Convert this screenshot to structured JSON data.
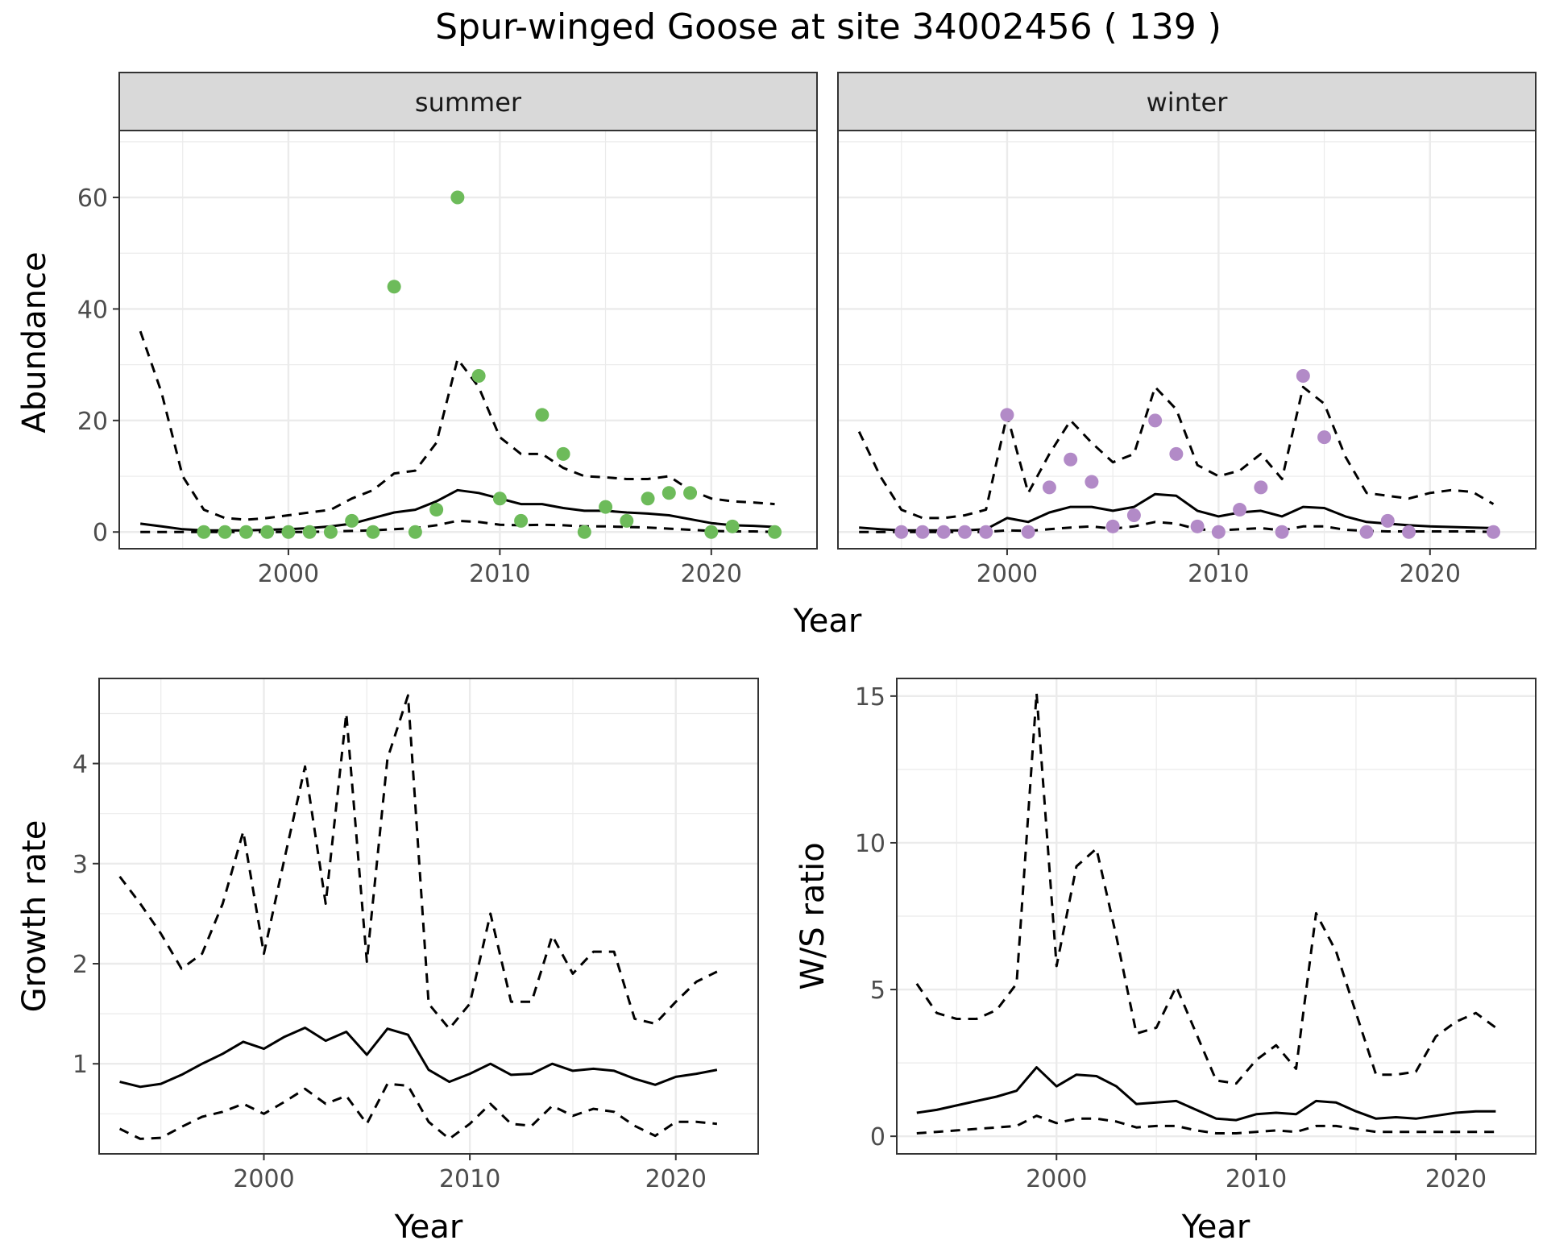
{
  "title": "Spur-winged Goose at site 34002456 ( 139 )",
  "colors": {
    "summer_points": "#6dbb5a",
    "winter_points": "#b28ac7",
    "strip_fill": "#d9d9d9",
    "grid_major": "#ebebeb",
    "line": "#000000"
  },
  "chart_data": [
    {
      "type": "scatter",
      "facet": "summer",
      "strip_label": "summer",
      "xlabel": "Year",
      "ylabel": "Abundance",
      "xlim": [
        1992,
        2025
      ],
      "ylim": [
        -3,
        72
      ],
      "xticks": [
        2000,
        2010,
        2020
      ],
      "yticks": [
        0,
        20,
        40,
        60
      ],
      "points": {
        "x": [
          1996,
          1997,
          1998,
          1999,
          2000,
          2001,
          2002,
          2003,
          2004,
          2005,
          2006,
          2007,
          2008,
          2009,
          2010,
          2011,
          2012,
          2013,
          2014,
          2015,
          2016,
          2017,
          2018,
          2019,
          2020,
          2021,
          2023
        ],
        "y": [
          0,
          0,
          0,
          0,
          0,
          0,
          0,
          2,
          0,
          44,
          0,
          4,
          60,
          28,
          6,
          2,
          21,
          14,
          0,
          4.5,
          2,
          6,
          7,
          7,
          0,
          1,
          0
        ]
      },
      "lines": [
        {
          "style": "solid",
          "x": [
            1993,
            1994,
            1995,
            1996,
            1997,
            1998,
            1999,
            2000,
            2001,
            2002,
            2003,
            2004,
            2005,
            2006,
            2007,
            2008,
            2009,
            2010,
            2011,
            2012,
            2013,
            2014,
            2015,
            2016,
            2017,
            2018,
            2019,
            2020,
            2021,
            2022,
            2023
          ],
          "y": [
            1.5,
            1,
            0.5,
            0.3,
            0.3,
            0.3,
            0.4,
            0.5,
            0.7,
            1,
            1.5,
            2.5,
            3.5,
            4,
            5.5,
            7.5,
            7,
            6,
            5,
            5,
            4.3,
            3.8,
            3.8,
            3.5,
            3.3,
            3,
            2.3,
            1.6,
            1.2,
            1.1,
            0.9
          ]
        },
        {
          "style": "dashed",
          "x": [
            1993,
            1994,
            1995,
            1996,
            1997,
            1998,
            1999,
            2000,
            2001,
            2002,
            2003,
            2004,
            2005,
            2006,
            2007,
            2008,
            2009,
            2010,
            2011,
            2012,
            2013,
            2014,
            2015,
            2016,
            2017,
            2018,
            2019,
            2020,
            2021,
            2022,
            2023
          ],
          "y": [
            36,
            25,
            10,
            4,
            2.5,
            2.2,
            2.5,
            3,
            3.5,
            4,
            6,
            7.5,
            10.5,
            11,
            16,
            31,
            26,
            17,
            14,
            14,
            11.5,
            10,
            9.8,
            9.5,
            9.5,
            10,
            7.5,
            6,
            5.5,
            5.3,
            5
          ]
        },
        {
          "style": "dashed",
          "x": [
            1993,
            1994,
            1995,
            1996,
            1997,
            1998,
            1999,
            2000,
            2001,
            2002,
            2003,
            2004,
            2005,
            2006,
            2007,
            2008,
            2009,
            2010,
            2011,
            2012,
            2013,
            2014,
            2015,
            2016,
            2017,
            2018,
            2019,
            2020,
            2021,
            2022,
            2023
          ],
          "y": [
            0,
            0,
            0,
            0,
            0,
            0,
            0,
            0,
            0,
            0.1,
            0.2,
            0.3,
            0.5,
            0.7,
            1.2,
            2,
            1.8,
            1.3,
            1.2,
            1.3,
            1.2,
            1,
            1,
            0.9,
            0.8,
            0.6,
            0.4,
            0.2,
            0.1,
            0.1,
            0
          ]
        }
      ]
    },
    {
      "type": "scatter",
      "facet": "winter",
      "strip_label": "winter",
      "xlabel": "Year",
      "ylabel": "",
      "xlim": [
        1992,
        2025
      ],
      "ylim": [
        -3,
        72
      ],
      "xticks": [
        2000,
        2010,
        2020
      ],
      "yticks": [
        0,
        20,
        40,
        60
      ],
      "points": {
        "x": [
          1995,
          1996,
          1997,
          1998,
          1999,
          2000,
          2001,
          2002,
          2003,
          2004,
          2005,
          2006,
          2007,
          2008,
          2009,
          2010,
          2011,
          2012,
          2013,
          2014,
          2015,
          2017,
          2018,
          2019,
          2023
        ],
        "y": [
          0,
          0,
          0,
          0,
          0,
          21,
          0,
          8,
          13,
          9,
          1,
          3,
          20,
          14,
          1,
          0,
          4,
          8,
          0,
          28,
          17,
          0,
          2,
          0,
          0
        ]
      },
      "lines": [
        {
          "style": "solid",
          "x": [
            1993,
            1994,
            1995,
            1996,
            1997,
            1998,
            1999,
            2000,
            2001,
            2002,
            2003,
            2004,
            2005,
            2006,
            2007,
            2008,
            2009,
            2010,
            2011,
            2012,
            2013,
            2014,
            2015,
            2016,
            2017,
            2018,
            2019,
            2020,
            2021,
            2022,
            2023
          ],
          "y": [
            0.8,
            0.5,
            0.3,
            0.3,
            0.3,
            0.3,
            0.5,
            2.5,
            1.8,
            3.5,
            4.5,
            4.5,
            3.8,
            4.5,
            6.8,
            6.5,
            3.8,
            2.8,
            3.5,
            3.8,
            2.8,
            4.5,
            4.3,
            2.8,
            1.8,
            1.5,
            1.2,
            1,
            0.9,
            0.8,
            0.7
          ]
        },
        {
          "style": "dashed",
          "x": [
            1993,
            1994,
            1995,
            1996,
            1997,
            1998,
            1999,
            2000,
            2001,
            2002,
            2003,
            2004,
            2005,
            2006,
            2007,
            2008,
            2009,
            2010,
            2011,
            2012,
            2013,
            2014,
            2015,
            2016,
            2017,
            2018,
            2019,
            2020,
            2021,
            2022,
            2023
          ],
          "y": [
            18,
            10,
            4,
            2.5,
            2.5,
            3,
            4,
            21,
            7,
            14,
            20,
            16,
            12.5,
            14,
            26,
            22,
            12,
            10,
            11,
            14,
            9.5,
            26,
            23,
            13.5,
            7,
            6.5,
            6,
            7,
            7.5,
            7.2,
            5
          ]
        },
        {
          "style": "dashed",
          "x": [
            1993,
            1994,
            1995,
            1996,
            1997,
            1998,
            1999,
            2000,
            2001,
            2002,
            2003,
            2004,
            2005,
            2006,
            2007,
            2008,
            2009,
            2010,
            2011,
            2012,
            2013,
            2014,
            2015,
            2016,
            2017,
            2018,
            2019,
            2020,
            2021,
            2022,
            2023
          ],
          "y": [
            0,
            0,
            0,
            0,
            0,
            0,
            0,
            0.3,
            0.2,
            0.5,
            0.8,
            1,
            0.6,
            1,
            1.8,
            1.5,
            0.5,
            0.3,
            0.5,
            0.7,
            0.3,
            1,
            1,
            0.4,
            0.2,
            0.1,
            0.1,
            0.1,
            0.1,
            0.1,
            0
          ]
        }
      ]
    },
    {
      "type": "line",
      "xlabel": "Year",
      "ylabel": "Growth rate",
      "xlim": [
        1992,
        2024
      ],
      "ylim": [
        0.1,
        4.85
      ],
      "xticks": [
        2000,
        2010,
        2020
      ],
      "yticks": [
        1,
        2,
        3,
        4
      ],
      "lines": [
        {
          "style": "solid",
          "x": [
            1993,
            1994,
            1995,
            1996,
            1997,
            1998,
            1999,
            2000,
            2001,
            2002,
            2003,
            2004,
            2005,
            2006,
            2007,
            2008,
            2009,
            2010,
            2011,
            2012,
            2013,
            2014,
            2015,
            2016,
            2017,
            2018,
            2019,
            2020,
            2021,
            2022
          ],
          "y": [
            0.82,
            0.77,
            0.8,
            0.89,
            1.0,
            1.1,
            1.22,
            1.15,
            1.27,
            1.36,
            1.23,
            1.32,
            1.09,
            1.35,
            1.29,
            0.94,
            0.82,
            0.9,
            1.0,
            0.89,
            0.9,
            1.0,
            0.93,
            0.95,
            0.93,
            0.85,
            0.79,
            0.87,
            0.9,
            0.94
          ]
        },
        {
          "style": "dashed",
          "x": [
            1993,
            1994,
            1995,
            1996,
            1997,
            1998,
            1999,
            2000,
            2001,
            2002,
            2003,
            2004,
            2005,
            2006,
            2007,
            2008,
            2009,
            2010,
            2011,
            2012,
            2013,
            2014,
            2015,
            2016,
            2017,
            2018,
            2019,
            2020,
            2021,
            2022
          ],
          "y": [
            2.87,
            2.6,
            2.3,
            1.95,
            2.1,
            2.6,
            3.32,
            2.1,
            3.05,
            3.97,
            2.6,
            4.5,
            2.02,
            4.05,
            4.68,
            1.6,
            1.35,
            1.6,
            2.5,
            1.62,
            1.62,
            2.28,
            1.9,
            2.12,
            2.12,
            1.45,
            1.4,
            1.62,
            1.82,
            1.92
          ]
        },
        {
          "style": "dashed",
          "x": [
            1993,
            1994,
            1995,
            1996,
            1997,
            1998,
            1999,
            2000,
            2001,
            2002,
            2003,
            2004,
            2005,
            2006,
            2007,
            2008,
            2009,
            2010,
            2011,
            2012,
            2013,
            2014,
            2015,
            2016,
            2017,
            2018,
            2019,
            2020,
            2021,
            2022
          ],
          "y": [
            0.35,
            0.25,
            0.26,
            0.37,
            0.47,
            0.52,
            0.6,
            0.5,
            0.62,
            0.75,
            0.6,
            0.68,
            0.4,
            0.8,
            0.78,
            0.42,
            0.25,
            0.4,
            0.6,
            0.4,
            0.38,
            0.58,
            0.48,
            0.55,
            0.52,
            0.38,
            0.28,
            0.42,
            0.42,
            0.4
          ]
        }
      ]
    },
    {
      "type": "line",
      "xlabel": "Year",
      "ylabel": "W/S ratio",
      "xlim": [
        1992,
        2024
      ],
      "ylim": [
        -0.6,
        15.6
      ],
      "xticks": [
        2000,
        2010,
        2020
      ],
      "yticks": [
        0,
        5,
        10,
        15
      ],
      "lines": [
        {
          "style": "solid",
          "x": [
            1993,
            1994,
            1995,
            1996,
            1997,
            1998,
            1999,
            2000,
            2001,
            2002,
            2003,
            2004,
            2005,
            2006,
            2007,
            2008,
            2009,
            2010,
            2011,
            2012,
            2013,
            2014,
            2015,
            2016,
            2017,
            2018,
            2019,
            2020,
            2021,
            2022
          ],
          "y": [
            0.8,
            0.9,
            1.05,
            1.2,
            1.35,
            1.55,
            2.35,
            1.7,
            2.1,
            2.05,
            1.7,
            1.1,
            1.15,
            1.2,
            0.9,
            0.6,
            0.55,
            0.75,
            0.8,
            0.75,
            1.2,
            1.15,
            0.85,
            0.6,
            0.65,
            0.6,
            0.7,
            0.8,
            0.85,
            0.85
          ]
        },
        {
          "style": "dashed",
          "x": [
            1993,
            1994,
            1995,
            1996,
            1997,
            1998,
            1999,
            2000,
            2001,
            2002,
            2003,
            2004,
            2005,
            2006,
            2007,
            2008,
            2009,
            2010,
            2011,
            2012,
            2013,
            2014,
            2015,
            2016,
            2017,
            2018,
            2019,
            2020,
            2021,
            2022
          ],
          "y": [
            5.2,
            4.2,
            4.0,
            4.0,
            4.3,
            5.2,
            15.1,
            5.8,
            9.2,
            9.8,
            6.8,
            3.5,
            3.7,
            5.1,
            3.5,
            1.9,
            1.8,
            2.6,
            3.1,
            2.3,
            7.6,
            6.3,
            4.2,
            2.1,
            2.1,
            2.2,
            3.4,
            3.9,
            4.2,
            3.7
          ]
        },
        {
          "style": "dashed",
          "x": [
            1993,
            1994,
            1995,
            1996,
            1997,
            1998,
            1999,
            2000,
            2001,
            2002,
            2003,
            2004,
            2005,
            2006,
            2007,
            2008,
            2009,
            2010,
            2011,
            2012,
            2013,
            2014,
            2015,
            2016,
            2017,
            2018,
            2019,
            2020,
            2021,
            2022
          ],
          "y": [
            0.1,
            0.15,
            0.2,
            0.25,
            0.3,
            0.35,
            0.7,
            0.45,
            0.6,
            0.6,
            0.5,
            0.3,
            0.35,
            0.35,
            0.2,
            0.1,
            0.1,
            0.15,
            0.2,
            0.15,
            0.35,
            0.35,
            0.25,
            0.15,
            0.15,
            0.15,
            0.15,
            0.15,
            0.15,
            0.15
          ]
        }
      ]
    }
  ]
}
